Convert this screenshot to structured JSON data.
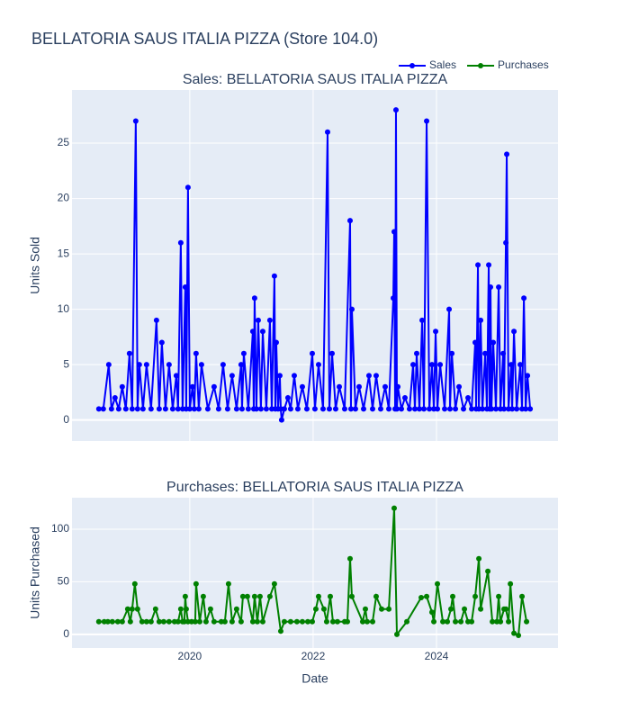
{
  "title": "BELLATORIA SAUS ITALIA PIZZA (Store 104.0)",
  "legend": "top-right",
  "chart_data": [
    {
      "type": "line",
      "title": "Sales: BELLATORIA SAUS ITALIA PIZZA",
      "ylabel": "Units Sold",
      "xlim": [
        2018.09,
        2025.97
      ],
      "xticks": [
        2020,
        2022,
        2024
      ],
      "ylim": [
        -1.9,
        29.8
      ],
      "yticks": [
        0,
        5,
        10,
        15,
        20,
        25
      ],
      "grid": true,
      "series": [
        {
          "name": "Sales",
          "color": "#0000ff",
          "x": [
            2018.525,
            2018.598,
            2018.686,
            2018.73,
            2018.788,
            2018.847,
            2018.905,
            2018.963,
            2019.022,
            2019.066,
            2019.124,
            2019.153,
            2019.182,
            2019.241,
            2019.299,
            2019.372,
            2019.46,
            2019.504,
            2019.547,
            2019.606,
            2019.664,
            2019.723,
            2019.781,
            2019.81,
            2019.854,
            2019.883,
            2019.927,
            2019.942,
            2019.971,
            2020.0,
            2020.044,
            2020.073,
            2020.102,
            2020.146,
            2020.19,
            2020.292,
            2020.394,
            2020.467,
            2020.54,
            2020.613,
            2020.686,
            2020.759,
            2020.832,
            2020.847,
            2020.876,
            2020.949,
            2021.022,
            2021.037,
            2021.051,
            2021.08,
            2021.11,
            2021.153,
            2021.183,
            2021.241,
            2021.299,
            2021.329,
            2021.372,
            2021.387,
            2021.402,
            2021.431,
            2021.46,
            2021.475,
            2021.489,
            2021.533,
            2021.591,
            2021.635,
            2021.694,
            2021.752,
            2021.825,
            2021.898,
            2021.986,
            2022.029,
            2022.088,
            2022.161,
            2022.234,
            2022.263,
            2022.307,
            2022.365,
            2022.424,
            2022.511,
            2022.599,
            2022.613,
            2022.628,
            2022.686,
            2022.745,
            2022.818,
            2022.905,
            2022.964,
            2023.022,
            2023.095,
            2023.168,
            2023.227,
            2023.3,
            2023.314,
            2023.329,
            2023.343,
            2023.358,
            2023.373,
            2023.431,
            2023.489,
            2023.562,
            2023.621,
            2023.65,
            2023.679,
            2023.723,
            2023.767,
            2023.796,
            2023.84,
            2023.884,
            2023.927,
            2023.957,
            2023.986,
            2024.015,
            2024.059,
            2024.132,
            2024.205,
            2024.219,
            2024.249,
            2024.307,
            2024.365,
            2024.438,
            2024.511,
            2024.57,
            2024.628,
            2024.643,
            2024.672,
            2024.687,
            2024.716,
            2024.745,
            2024.789,
            2024.818,
            2024.847,
            2024.862,
            2024.876,
            2024.891,
            2024.92,
            2024.964,
            2025.008,
            2025.037,
            2025.081,
            2025.095,
            2025.125,
            2025.139,
            2025.168,
            2025.212,
            2025.227,
            2025.256,
            2025.3,
            2025.358,
            2025.387,
            2025.417,
            2025.446,
            2025.475,
            2025.519
          ],
          "values": [
            1,
            1,
            5,
            1,
            2,
            1,
            3,
            1,
            6,
            1,
            27,
            1,
            5,
            1,
            5,
            1,
            9,
            1,
            7,
            1,
            5,
            1,
            4,
            1,
            16,
            1,
            12,
            1,
            21,
            1,
            3,
            1,
            6,
            1,
            5,
            1,
            3,
            1,
            5,
            1,
            4,
            1,
            5,
            1,
            6,
            1,
            8,
            1,
            11,
            1,
            9,
            1,
            8,
            1,
            9,
            1,
            13,
            1,
            7,
            1,
            4,
            1,
            0,
            1,
            2,
            1,
            4,
            1,
            3,
            1,
            6,
            1,
            5,
            1,
            26,
            1,
            6,
            1,
            3,
            1,
            18,
            1,
            10,
            1,
            3,
            1,
            4,
            1,
            4,
            1,
            3,
            1,
            11,
            17,
            1,
            28,
            1,
            3,
            1,
            2,
            1,
            5,
            1,
            6,
            1,
            9,
            1,
            27,
            1,
            5,
            1,
            8,
            1,
            5,
            1,
            10,
            1,
            6,
            1,
            3,
            1,
            2,
            1,
            7,
            1,
            14,
            1,
            9,
            1,
            6,
            1,
            14,
            1,
            12,
            1,
            7,
            1,
            12,
            1,
            6,
            1,
            16,
            24,
            1,
            5,
            1,
            8,
            1,
            5,
            1,
            11,
            1,
            4,
            1
          ]
        }
      ]
    },
    {
      "type": "line",
      "title": "Purchases: BELLATORIA SAUS ITALIA PIZZA",
      "ylabel": "Units Purchased",
      "xlabel": "Date",
      "xlim": [
        2018.09,
        2025.97
      ],
      "xticks": [
        2020,
        2022,
        2024
      ],
      "ylim": [
        -13,
        130
      ],
      "yticks": [
        0,
        50,
        100
      ],
      "grid": true,
      "series": [
        {
          "name": "Purchases",
          "color": "#008000",
          "x": [
            2018.525,
            2018.613,
            2018.671,
            2018.744,
            2018.832,
            2018.905,
            2018.993,
            2019.036,
            2019.066,
            2019.109,
            2019.153,
            2019.226,
            2019.299,
            2019.372,
            2019.445,
            2019.504,
            2019.577,
            2019.664,
            2019.752,
            2019.81,
            2019.854,
            2019.883,
            2019.912,
            2019.927,
            2019.942,
            2019.971,
            2020.029,
            2020.088,
            2020.102,
            2020.161,
            2020.219,
            2020.263,
            2020.336,
            2020.394,
            2020.511,
            2020.569,
            2020.628,
            2020.686,
            2020.759,
            2020.832,
            2020.861,
            2020.934,
            2021.022,
            2021.051,
            2021.095,
            2021.139,
            2021.183,
            2021.299,
            2021.372,
            2021.475,
            2021.533,
            2021.635,
            2021.737,
            2021.825,
            2021.913,
            2021.986,
            2022.044,
            2022.088,
            2022.175,
            2022.219,
            2022.278,
            2022.321,
            2022.394,
            2022.511,
            2022.555,
            2022.599,
            2022.628,
            2022.803,
            2022.847,
            2022.876,
            2022.964,
            2023.022,
            2023.11,
            2023.227,
            2023.314,
            2023.358,
            2023.519,
            2023.752,
            2023.84,
            2023.927,
            2023.957,
            2024.015,
            2024.103,
            2024.176,
            2024.234,
            2024.263,
            2024.307,
            2024.395,
            2024.453,
            2024.511,
            2024.57,
            2024.628,
            2024.687,
            2024.716,
            2024.833,
            2024.906,
            2024.979,
            2025.008,
            2025.037,
            2025.095,
            2025.125,
            2025.168,
            2025.198,
            2025.256,
            2025.329,
            2025.387,
            2025.46
          ],
          "values": [
            12,
            12,
            12,
            12,
            12,
            12,
            24,
            12,
            24,
            48,
            24,
            12,
            12,
            12,
            24,
            12,
            12,
            12,
            12,
            12,
            24,
            12,
            12,
            36,
            24,
            12,
            12,
            12,
            48,
            12,
            36,
            12,
            24,
            12,
            12,
            12,
            48,
            12,
            24,
            12,
            36,
            36,
            12,
            36,
            12,
            36,
            12,
            36,
            48,
            3,
            12,
            12,
            12,
            12,
            12,
            12,
            24,
            36,
            24,
            12,
            36,
            12,
            12,
            12,
            12,
            72,
            36,
            12,
            24,
            12,
            12,
            36,
            24,
            24,
            120,
            0,
            12,
            35,
            36,
            21,
            12,
            48,
            12,
            12,
            24,
            36,
            12,
            12,
            24,
            12,
            12,
            36,
            72,
            24,
            60,
            12,
            12,
            36,
            12,
            24,
            24,
            12,
            48,
            1,
            -1,
            36,
            12
          ]
        }
      ]
    }
  ]
}
